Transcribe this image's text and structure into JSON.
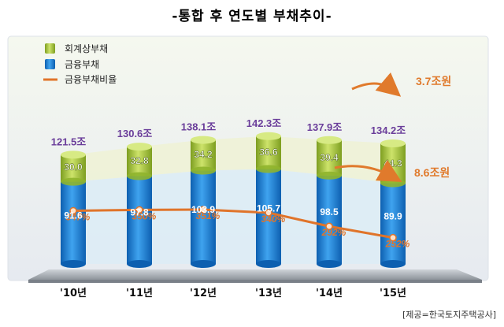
{
  "title": "-통합 후 연도별 부채추이-",
  "source": "[제공=한국토지주택공사]",
  "colors": {
    "financial_debt": "#1f86d8",
    "accounting_debt": "#a9c93a",
    "ratio_line": "#e0742a",
    "total_label": "#6a3d9a",
    "callout": "#e07a2c"
  },
  "chart_data": {
    "type": "bar",
    "stacked": true,
    "categories": [
      "'10년",
      "'11년",
      "'12년",
      "'13년",
      "'14년",
      "'15년"
    ],
    "series": [
      {
        "name": "금융부채",
        "values": [
          91.6,
          97.8,
          103.9,
          105.7,
          98.5,
          89.9
        ]
      },
      {
        "name": "회계상부채",
        "values": [
          30.0,
          32.8,
          34.2,
          36.6,
          39.4,
          44.3
        ]
      }
    ],
    "totals": [
      "121.5조",
      "130.6조",
      "138.1조",
      "142.3조",
      "137.9조",
      "134.2조"
    ],
    "line_series": {
      "name": "금융부채비율",
      "values": [
        347,
        350,
        351,
        340,
        292,
        252
      ],
      "labels": [
        "347%",
        "350%",
        "351%",
        "340%",
        "292%",
        "252%"
      ]
    },
    "legend": [
      "회계상부채",
      "금융부채",
      "금융부채비율"
    ],
    "legend_position": "top-left",
    "annotations": [
      "3.7조원",
      "8.6조원"
    ]
  }
}
